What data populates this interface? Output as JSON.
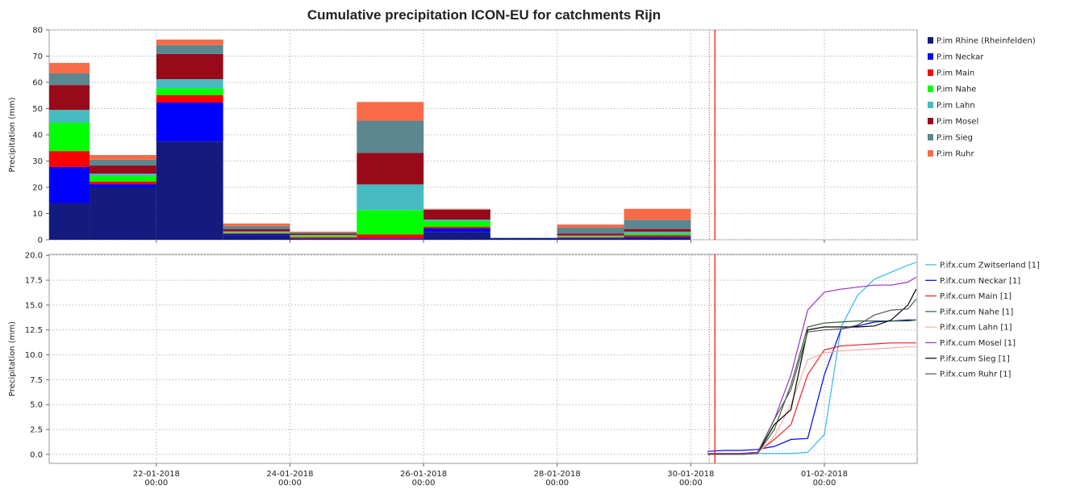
{
  "chart_data": [
    {
      "type": "bar",
      "stacked": true,
      "title": "Cumulative precipitation ICON-EU for catchments Rijn",
      "ylabel": "Precipitation (mm)",
      "x": [
        "20-01-2018 00:00",
        "21-01-2018 00:00",
        "22-01-2018 00:00",
        "23-01-2018 00:00",
        "24-01-2018 00:00",
        "25-01-2018 00:00",
        "26-01-2018 00:00",
        "27-01-2018 00:00",
        "28-01-2018 00:00",
        "29-01-2018 00:00"
      ],
      "xlim": [
        "20-01-2018 09:30",
        "02-02-2018 09:20"
      ],
      "xticks": [
        "22-01-2018 00:00",
        "24-01-2018 00:00",
        "26-01-2018 00:00",
        "28-01-2018 00:00",
        "30-01-2018 00:00",
        "01-02-2018 00:00"
      ],
      "ylim": [
        0,
        80
      ],
      "yticks": [
        0,
        10,
        20,
        30,
        40,
        50,
        60,
        70,
        80
      ],
      "grid": true,
      "vlines": [
        {
          "x": "30-01-2018 06:40",
          "color": "#669933",
          "style": "dotted"
        },
        {
          "x": "30-01-2018 08:40",
          "color": "#ff0000",
          "style": "solid"
        }
      ],
      "series": [
        {
          "name": "P.im Rhine (Rheinfelden)",
          "color": "#141b7e",
          "values": [
            14,
            20,
            37.5,
            1.8,
            0.3,
            0.2,
            3,
            0.6,
            0.5,
            0.8
          ]
        },
        {
          "name": "P.im Neckar",
          "color": "#0000ff",
          "values": [
            13.7,
            1.2,
            14.8,
            0.4,
            0.2,
            0.3,
            1.3,
            0.1,
            0.2,
            0.3
          ]
        },
        {
          "name": "P.im Main",
          "color": "#ff0000",
          "values": [
            6.1,
            1,
            2.8,
            0.3,
            0.5,
            1.5,
            0.6,
            0,
            0.3,
            0.6
          ]
        },
        {
          "name": "P.im Nahe",
          "color": "#00ff00",
          "values": [
            10.8,
            2.1,
            2.7,
            0.3,
            0.5,
            9.3,
            2.2,
            0,
            0.3,
            0.6
          ]
        },
        {
          "name": "P.im Lahn",
          "color": "#46bcc0",
          "values": [
            4.9,
            0.9,
            3.4,
            0.4,
            0.3,
            9.8,
            0.6,
            0,
            0.3,
            0.8
          ]
        },
        {
          "name": "P.im Mosel",
          "color": "#980a1a",
          "values": [
            9.5,
            3.1,
            9.6,
            0.8,
            0.6,
            12,
            3.7,
            0,
            0.8,
            1
          ]
        },
        {
          "name": "P.im Sieg",
          "color": "#5b8791",
          "values": [
            4.4,
            2.2,
            3.4,
            1.2,
            0.4,
            12.3,
            0.2,
            0,
            2.2,
            3.5
          ]
        },
        {
          "name": "P.im Ruhr",
          "color": "#f96b48",
          "values": [
            4,
            1.8,
            2.1,
            1,
            0.3,
            7.1,
            0.2,
            0,
            1.2,
            4.2
          ]
        }
      ]
    },
    {
      "type": "line",
      "ylabel": "Precipitation (mm)",
      "x": [
        "30-01-2018 06:00",
        "30-01-2018 12:00",
        "30-01-2018 18:00",
        "31-01-2018 00:00",
        "31-01-2018 06:00",
        "31-01-2018 12:00",
        "31-01-2018 18:00",
        "01-02-2018 00:00",
        "01-02-2018 06:00",
        "01-02-2018 12:00",
        "01-02-2018 18:00",
        "02-02-2018 00:00",
        "02-02-2018 06:00",
        "02-02-2018 09:00"
      ],
      "xlim": [
        "20-01-2018 09:30",
        "02-02-2018 09:20"
      ],
      "xticks": [
        "22-01-2018 00:00",
        "24-01-2018 00:00",
        "26-01-2018 00:00",
        "28-01-2018 00:00",
        "30-01-2018 00:00",
        "01-02-2018 00:00"
      ],
      "ylim": [
        -0.9,
        20.1
      ],
      "yticks": [
        {
          "value": 0,
          "label": "0.0"
        },
        2.5,
        {
          "value": 5,
          "label": "5.0"
        },
        7.5,
        {
          "value": 10,
          "label": "10.0"
        },
        12.5,
        {
          "value": 15,
          "label": "15.0"
        },
        17.5,
        {
          "value": 20,
          "label": "20.0"
        }
      ],
      "grid": true,
      "vlines": [
        {
          "x": "30-01-2018 06:40",
          "color": "#669933",
          "style": "dotted"
        },
        {
          "x": "30-01-2018 08:40",
          "color": "#ff0000",
          "style": "solid"
        }
      ],
      "series": [
        {
          "name": "P.ifx.cum Zwitserland [1]",
          "color": "#33bbee",
          "values": [
            0.1,
            0.1,
            0.1,
            0.1,
            0.1,
            0.1,
            0.2,
            2,
            12.8,
            16,
            17.6,
            18.3,
            19,
            19.3
          ]
        },
        {
          "name": "P.ifx.cum Neckar [1]",
          "color": "#0000ee",
          "values": [
            0.3,
            0.4,
            0.4,
            0.5,
            0.8,
            1.5,
            1.6,
            8,
            12.6,
            12.9,
            13.3,
            13.4,
            13.5,
            13.5
          ]
        },
        {
          "name": "P.ifx.cum Main [1]",
          "color": "#ee2222",
          "values": [
            0.1,
            0.1,
            0.1,
            0.2,
            1.5,
            3,
            8,
            10.5,
            10.9,
            11,
            11.1,
            11.2,
            11.2,
            11.2
          ]
        },
        {
          "name": "P.ifx.cum Nahe [1]",
          "color": "#336633",
          "values": [
            0.1,
            0.1,
            0.1,
            0.1,
            2.5,
            7,
            12.8,
            13.2,
            13.3,
            13.4,
            13.4,
            13.4,
            13.4,
            13.5
          ]
        },
        {
          "name": "P.ifx.cum Lahn [1]",
          "color": "#ffaaaa",
          "values": [
            0.1,
            0.1,
            0.1,
            0.1,
            1.8,
            5,
            9.5,
            10.2,
            10.4,
            10.5,
            10.6,
            10.7,
            10.8,
            10.8
          ]
        },
        {
          "name": "P.ifx.cum Mosel [1]",
          "color": "#9933cc",
          "values": [
            0.1,
            0.1,
            0.1,
            0.2,
            3.5,
            8,
            14.5,
            16.3,
            16.6,
            16.8,
            17,
            17,
            17.3,
            17.8
          ]
        },
        {
          "name": "P.ifx.cum Sieg [1]",
          "color": "#000000",
          "values": [
            0,
            0,
            0,
            0.1,
            3,
            4.5,
            12.5,
            12.8,
            12.8,
            12.8,
            12.9,
            13.5,
            15,
            16.6
          ]
        },
        {
          "name": "P.ifx.cum Ruhr [1]",
          "color": "#555555",
          "values": [
            0,
            0,
            0,
            0.1,
            3.5,
            6.5,
            12.3,
            12.5,
            12.6,
            13,
            14,
            14.5,
            14.6,
            15.6
          ]
        }
      ]
    }
  ]
}
